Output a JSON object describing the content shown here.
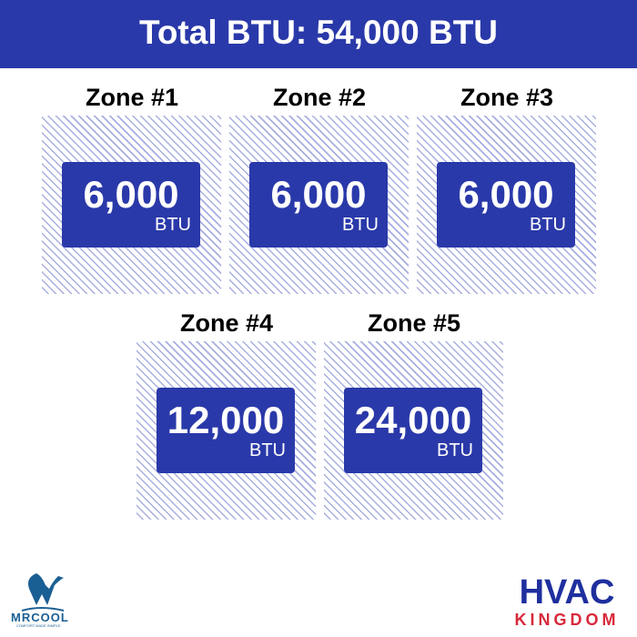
{
  "header": {
    "title": "Total BTU: 54,000 BTU"
  },
  "zones": [
    {
      "label": "Zone #1",
      "value": "6,000",
      "unit": "BTU"
    },
    {
      "label": "Zone #2",
      "value": "6,000",
      "unit": "BTU"
    },
    {
      "label": "Zone #3",
      "value": "6,000",
      "unit": "BTU"
    },
    {
      "label": "Zone #4",
      "value": "12,000",
      "unit": "BTU"
    },
    {
      "label": "Zone #5",
      "value": "24,000",
      "unit": "BTU"
    }
  ],
  "logos": {
    "mrcool": "MRCOOL",
    "mrcool_tagline": "COMFORT MADE SIMPLE",
    "hvac": "HVAC",
    "kingdom": "KINGDOM"
  },
  "colors": {
    "primary": "#2a39a9",
    "hatch": "#a8aee0",
    "kingdom_red": "#d8283a"
  }
}
